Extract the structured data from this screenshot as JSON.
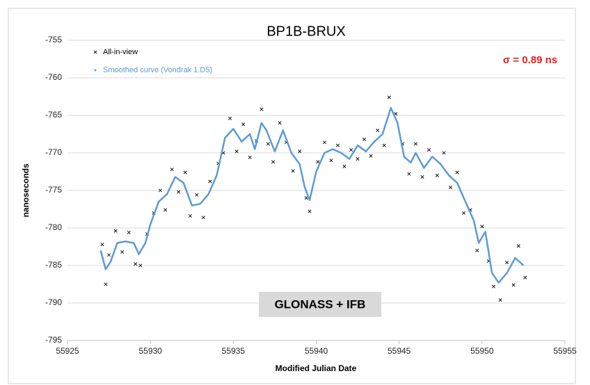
{
  "chart_data": {
    "type": "scatter",
    "title": "BP1B-BRUX",
    "x_label": "Modified Julian Date",
    "y_label": "nanoseconds",
    "annotations": [
      "σ = 0.89 ns",
      "GLONASS + IFB"
    ],
    "annotation_colors": [
      "#e8201c",
      "#000000"
    ],
    "xlim": [
      55925,
      55955
    ],
    "xticks": [
      55925,
      55930,
      55935,
      55940,
      55945,
      55950,
      55955
    ],
    "ylim": [
      -795,
      -755
    ],
    "yticks": [
      -755,
      -760,
      -765,
      -770,
      -775,
      -780,
      -785,
      -790,
      -795
    ],
    "grid": true,
    "legend": "upper left",
    "series": [
      {
        "name": "All-in-view",
        "type": "scatter",
        "color": "#1a1a1a",
        "x": [
          55927.1,
          55927.3,
          55927.5,
          55927.9,
          55928.3,
          55928.7,
          55929.1,
          55929.4,
          55929.8,
          55930.2,
          55930.6,
          55930.9,
          55931.3,
          55931.7,
          55932.1,
          55932.4,
          55932.8,
          55933.2,
          55933.6,
          55934.1,
          55934.4,
          55934.8,
          55935.2,
          55935.6,
          55936.0,
          55936.4,
          55936.7,
          55937.1,
          55937.4,
          55937.8,
          55938.2,
          55938.6,
          55939.0,
          55939.4,
          55939.6,
          55940.1,
          55940.5,
          55940.9,
          55941.3,
          55941.7,
          55942.1,
          55942.5,
          55942.9,
          55943.3,
          55943.7,
          55944.1,
          55944.4,
          55944.8,
          55945.2,
          55945.6,
          55946.0,
          55946.4,
          55946.8,
          55947.3,
          55947.7,
          55948.1,
          55948.5,
          55948.9,
          55949.3,
          55949.7,
          55950.0,
          55950.4,
          55950.7,
          55951.1,
          55951.5,
          55951.9,
          55952.2,
          55952.6
        ],
        "values": [
          -782.2,
          -787.5,
          -783.6,
          -780.4,
          -783.2,
          -780.6,
          -784.8,
          -785.0,
          -780.8,
          -778.0,
          -775.0,
          -777.6,
          -772.2,
          -775.2,
          -772.6,
          -778.4,
          -775.6,
          -778.6,
          -773.8,
          -771.4,
          -770.0,
          -765.4,
          -769.8,
          -766.2,
          -770.6,
          -768.4,
          -764.2,
          -768.8,
          -771.2,
          -766.0,
          -768.6,
          -772.4,
          -769.8,
          -776.0,
          -777.8,
          -771.2,
          -768.6,
          -771.0,
          -769.0,
          -771.8,
          -769.6,
          -770.8,
          -768.2,
          -770.4,
          -767.0,
          -769.0,
          -762.6,
          -764.8,
          -768.8,
          -772.8,
          -768.8,
          -773.2,
          -769.6,
          -773.0,
          -770.0,
          -774.6,
          -772.6,
          -778.0,
          -777.6,
          -783.0,
          -779.8,
          -784.4,
          -787.8,
          -789.6,
          -784.6,
          -787.6,
          -782.4,
          -786.6
        ]
      },
      {
        "name": "Smoothed curve (Vondrak 1.D5)",
        "type": "line",
        "color": "#5b9bd5",
        "x": [
          55927.0,
          55927.3,
          55927.6,
          55928.0,
          55928.5,
          55929.0,
          55929.3,
          55929.7,
          55930.0,
          55930.5,
          55931.0,
          55931.5,
          55932.0,
          55932.5,
          55933.0,
          55933.5,
          55934.0,
          55934.5,
          55935.0,
          55935.5,
          55936.0,
          55936.3,
          55936.7,
          55937.0,
          55937.5,
          55938.0,
          55938.5,
          55939.0,
          55939.3,
          55939.6,
          55940.0,
          55940.5,
          55941.0,
          55941.5,
          55942.0,
          55942.5,
          55943.0,
          55943.5,
          55944.0,
          55944.5,
          55944.9,
          55945.3,
          55945.7,
          55946.0,
          55946.5,
          55947.0,
          55947.5,
          55948.0,
          55948.5,
          55949.0,
          55949.5,
          55949.8,
          55950.2,
          55950.6,
          55951.0,
          55951.5,
          55952.0,
          55952.5
        ],
        "values": [
          -783,
          -785.5,
          -784.5,
          -782,
          -781.8,
          -782,
          -783.5,
          -782,
          -779.5,
          -776.5,
          -775.5,
          -773.2,
          -774,
          -777,
          -776.8,
          -775.5,
          -773,
          -768,
          -766.8,
          -768.5,
          -767.5,
          -769.5,
          -766,
          -767,
          -769.8,
          -767,
          -770,
          -771.5,
          -774.5,
          -776.3,
          -772.5,
          -770,
          -769.5,
          -770,
          -770.8,
          -769,
          -769.8,
          -768.5,
          -767.5,
          -764,
          -766,
          -770.5,
          -771.3,
          -770,
          -772,
          -770.5,
          -771.5,
          -773,
          -774,
          -776.5,
          -779,
          -782,
          -780.5,
          -786,
          -787.3,
          -786,
          -784,
          -785
        ]
      }
    ]
  }
}
